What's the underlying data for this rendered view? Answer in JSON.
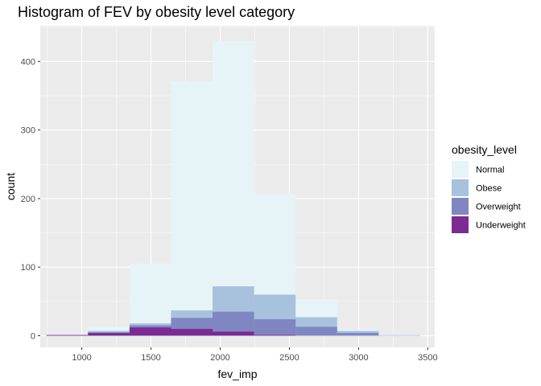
{
  "chart_data": {
    "type": "bar",
    "subtype": "stacked-histogram",
    "title": "Histogram of FEV by obesity level category",
    "xlabel": "fev_imp",
    "ylabel": "count",
    "xlim": [
      700,
      3550
    ],
    "ylim": [
      -17,
      452
    ],
    "x_ticks": [
      1000,
      1500,
      2000,
      2500,
      3000,
      3500
    ],
    "y_ticks": [
      0,
      100,
      200,
      300,
      400
    ],
    "grid": true,
    "bins": [
      {
        "start": 745,
        "end": 1045
      },
      {
        "start": 1045,
        "end": 1345
      },
      {
        "start": 1345,
        "end": 1645
      },
      {
        "start": 1645,
        "end": 1945
      },
      {
        "start": 1945,
        "end": 2245
      },
      {
        "start": 2245,
        "end": 2545
      },
      {
        "start": 2545,
        "end": 2845
      },
      {
        "start": 2845,
        "end": 3145
      },
      {
        "start": 3145,
        "end": 3445
      }
    ],
    "series": [
      {
        "name": "Normal",
        "color": "#e6f4f8",
        "cumulative": [
          2,
          13,
          105,
          371,
          430,
          207,
          53,
          9,
          2
        ]
      },
      {
        "name": "Obese",
        "color": "#a8c1dd",
        "cumulative": [
          1,
          7,
          18,
          37,
          72,
          60,
          27,
          7,
          1
        ]
      },
      {
        "name": "Overweight",
        "color": "#7f86c1",
        "cumulative": [
          1,
          5,
          15,
          26,
          35,
          24,
          13,
          4,
          0
        ]
      },
      {
        "name": "Underweight",
        "color": "#7b2b93",
        "cumulative": [
          1,
          4,
          12,
          10,
          6,
          1,
          0,
          0,
          0
        ]
      }
    ],
    "legend_title": "obesity_level",
    "legend_position": "right"
  },
  "colors": {
    "panel_background": "#ebebeb",
    "grid_major": "#ffffff",
    "tick_mark": "#333333"
  }
}
